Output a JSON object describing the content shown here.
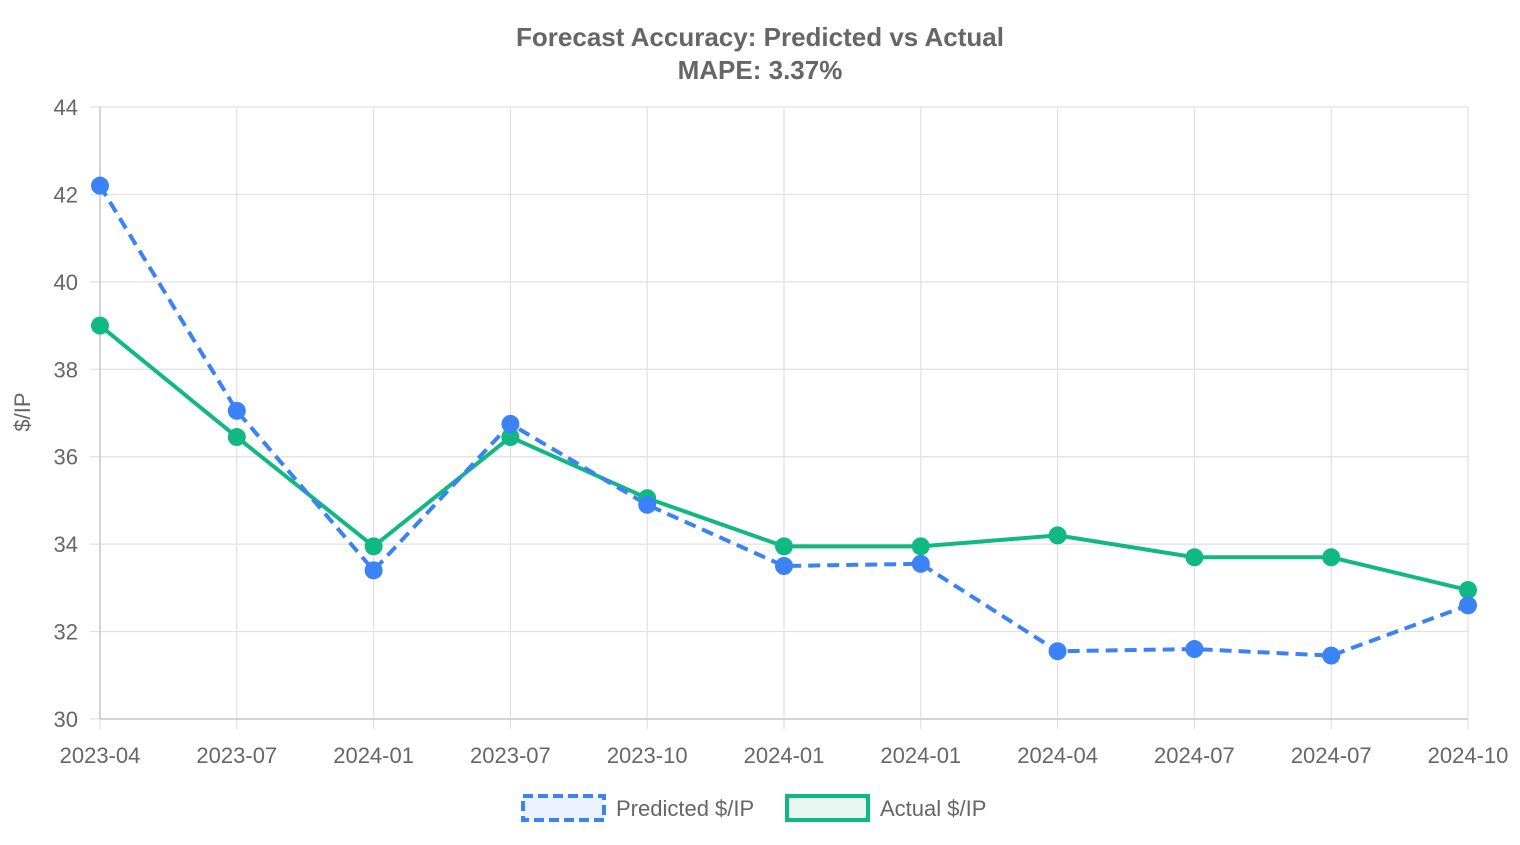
{
  "chart_data": {
    "type": "line",
    "title": "Forecast Accuracy: Predicted vs Actual",
    "subtitle": "MAPE: 3.37%",
    "ylabel": "$/IP",
    "xlabel": "",
    "ylim": [
      30,
      44
    ],
    "yticks": [
      "30",
      "32",
      "34",
      "36",
      "38",
      "40",
      "42",
      "44"
    ],
    "categories": [
      "2023-04",
      "2023-07",
      "2024-01",
      "2023-07",
      "2023-10",
      "2024-01",
      "2024-01",
      "2024-04",
      "2024-07",
      "2024-07",
      "2024-10"
    ],
    "grid": true,
    "legend_position": "bottom",
    "series": [
      {
        "name": "Predicted $/IP",
        "color": "#3b82f6",
        "fill": "#ebf2fe",
        "style": "dashed",
        "values": [
          42.2,
          37.05,
          33.4,
          36.75,
          34.9,
          33.5,
          33.55,
          31.55,
          31.6,
          31.45,
          32.6
        ]
      },
      {
        "name": "Actual $/IP",
        "color": "#10b981",
        "fill": "#e6f7f1",
        "style": "solid",
        "values": [
          39.0,
          36.45,
          33.95,
          36.45,
          35.05,
          33.95,
          33.95,
          34.2,
          33.7,
          33.7,
          32.95
        ]
      }
    ]
  }
}
